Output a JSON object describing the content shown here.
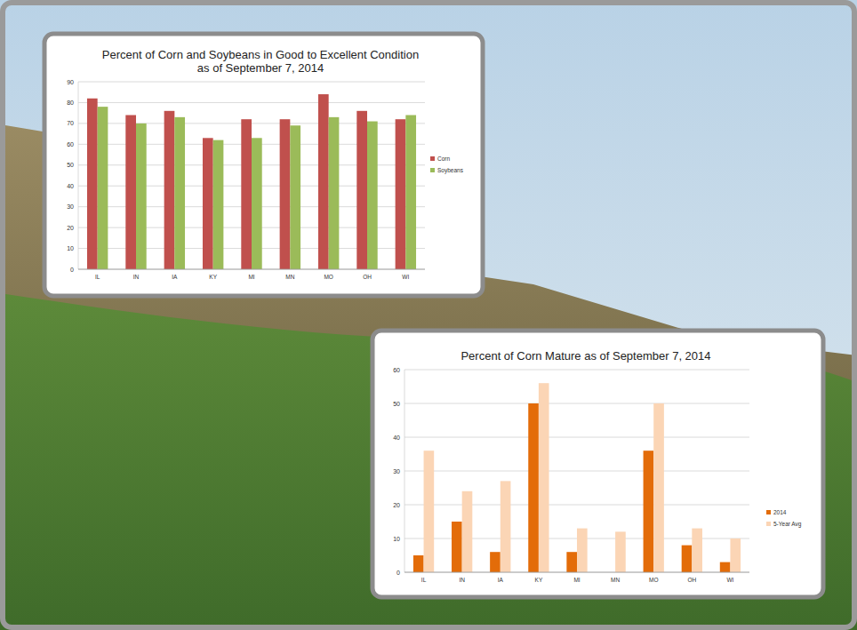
{
  "chart_data": [
    {
      "type": "bar",
      "title": "Percent of Corn and Soybeans in Good to Excellent Condition as of September 7, 2014",
      "categories": [
        "IL",
        "IN",
        "IA",
        "KY",
        "MI",
        "MN",
        "MO",
        "OH",
        "WI"
      ],
      "series": [
        {
          "name": "Corn",
          "color": "#c0504d",
          "values": [
            82,
            74,
            76,
            63,
            72,
            72,
            84,
            76,
            72
          ]
        },
        {
          "name": "Soybeans",
          "color": "#9bbb59",
          "values": [
            78,
            70,
            73,
            62,
            63,
            69,
            73,
            71,
            74
          ]
        }
      ],
      "ylim": [
        0,
        90
      ],
      "yticks": [
        0,
        10,
        20,
        30,
        40,
        50,
        60,
        70,
        80,
        90
      ],
      "grid": true,
      "legend": "right"
    },
    {
      "type": "bar",
      "title": "Percent of Corn Mature as of September 7, 2014",
      "categories": [
        "IL",
        "IN",
        "IA",
        "KY",
        "MI",
        "MN",
        "MO",
        "OH",
        "WI"
      ],
      "series": [
        {
          "name": "2014",
          "color": "#e36c09",
          "values": [
            5,
            15,
            6,
            50,
            6,
            0,
            36,
            8,
            3
          ]
        },
        {
          "name": "5-Year Avg",
          "color": "#fbd5b5",
          "values": [
            36,
            24,
            27,
            56,
            13,
            12,
            50,
            13,
            10
          ]
        }
      ],
      "ylim": [
        0,
        60
      ],
      "yticks": [
        0,
        10,
        20,
        30,
        40,
        50,
        60
      ],
      "grid": true,
      "legend": "right"
    }
  ]
}
